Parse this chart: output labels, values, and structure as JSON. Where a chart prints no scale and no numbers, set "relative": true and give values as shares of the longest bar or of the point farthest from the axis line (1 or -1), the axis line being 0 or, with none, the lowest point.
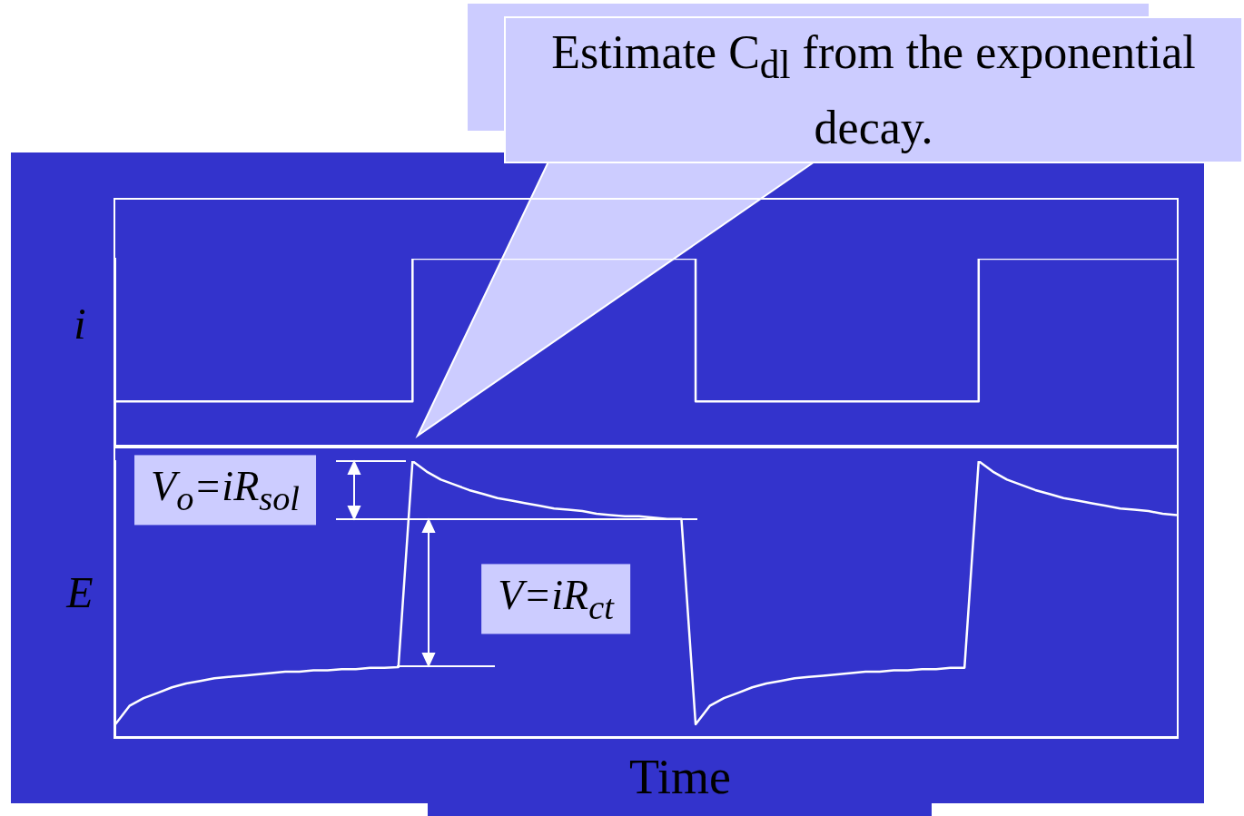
{
  "chart_data": [
    {
      "type": "step",
      "ylabel": "i",
      "relative": true,
      "tick_labels": false,
      "marker": "none",
      "annotations": [
        "Estimate C$_{dl}$ from the exponential decay."
      ],
      "categories": [
        null,
        null,
        null,
        null,
        null,
        null,
        null,
        null,
        null,
        null,
        null,
        null,
        null,
        null,
        null,
        null,
        null,
        null,
        null,
        null,
        null,
        null,
        null,
        null,
        null,
        null,
        null,
        null,
        null,
        null,
        null,
        null,
        null,
        null,
        null,
        null,
        null,
        null,
        null,
        null,
        null,
        null,
        null,
        null,
        null,
        null,
        null,
        null,
        null,
        null,
        null,
        null,
        null,
        null,
        null,
        null,
        null,
        null,
        null,
        null,
        null,
        null,
        null,
        null,
        null,
        null,
        null,
        null,
        null,
        null,
        null,
        null,
        null,
        null,
        null,
        null
      ],
      "series": [
        {
          "color": "#ffffff",
          "values": [
            0.24,
            0.24,
            0.24,
            0.24,
            0.24,
            0.24,
            0.24,
            0.24,
            0.24,
            0.24,
            0.24,
            0.24,
            0.24,
            0.24,
            0.24,
            0.24,
            0.24,
            0.24,
            0.24,
            0.24,
            0.24,
            1,
            1,
            1,
            1,
            1,
            1,
            1,
            1,
            1,
            1,
            1,
            1,
            1,
            1,
            1,
            1,
            1,
            1,
            1,
            1,
            0.24,
            0.24,
            0.24,
            0.24,
            0.24,
            0.24,
            0.24,
            0.24,
            0.24,
            0.24,
            0.24,
            0.24,
            0.24,
            0.24,
            0.24,
            0.24,
            0.24,
            0.24,
            0.24,
            0.24,
            1,
            1,
            1,
            1,
            1,
            1,
            1,
            1,
            1,
            1,
            1,
            1,
            1,
            1,
            1
          ]
        }
      ]
    },
    {
      "type": "line",
      "ylabel": "E",
      "xlabel": "Time",
      "relative": true,
      "tick_labels": false,
      "marker": "none",
      "annotations": [
        "V$_{o}$=iR$_{sol}$",
        "V=iR$_{ct}$"
      ],
      "categories": [
        null,
        null,
        null,
        null,
        null,
        null,
        null,
        null,
        null,
        null,
        null,
        null,
        null,
        null,
        null,
        null,
        null,
        null,
        null,
        null,
        null,
        null,
        null,
        null,
        null,
        null,
        null,
        null,
        null,
        null,
        null,
        null,
        null,
        null,
        null,
        null,
        null,
        null,
        null,
        null,
        null,
        null,
        null,
        null,
        null,
        null,
        null,
        null,
        null,
        null,
        null,
        null,
        null,
        null,
        null,
        null,
        null,
        null,
        null,
        null,
        null,
        null,
        null,
        null,
        null,
        null,
        null,
        null,
        null,
        null,
        null,
        null,
        null,
        null,
        null,
        null
      ],
      "series": [
        {
          "color": "#ffffff",
          "values": [
            0.046,
            0.113,
            0.141,
            0.16,
            0.18,
            0.194,
            0.203,
            0.213,
            0.218,
            0.222,
            0.227,
            0.232,
            0.237,
            0.237,
            0.242,
            0.242,
            0.246,
            0.246,
            0.251,
            0.251,
            0.253,
            1,
            0.962,
            0.933,
            0.914,
            0.895,
            0.881,
            0.866,
            0.857,
            0.847,
            0.838,
            0.828,
            0.824,
            0.819,
            0.809,
            0.804,
            0.8,
            0.8,
            0.795,
            0.79,
            0.79,
            0.046,
            0.113,
            0.141,
            0.16,
            0.18,
            0.194,
            0.203,
            0.213,
            0.218,
            0.222,
            0.227,
            0.232,
            0.237,
            0.237,
            0.242,
            0.242,
            0.246,
            0.246,
            0.251,
            0.251,
            1,
            0.962,
            0.933,
            0.914,
            0.895,
            0.881,
            0.866,
            0.857,
            0.847,
            0.838,
            0.828,
            0.824,
            0.819,
            0.809,
            0.804
          ]
        }
      ]
    }
  ]
}
